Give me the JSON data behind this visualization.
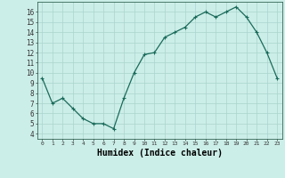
{
  "x": [
    0,
    1,
    2,
    3,
    4,
    5,
    6,
    7,
    8,
    9,
    10,
    11,
    12,
    13,
    14,
    15,
    16,
    17,
    18,
    19,
    20,
    21,
    22,
    23
  ],
  "y": [
    9.5,
    7.0,
    7.5,
    6.5,
    5.5,
    5.0,
    5.0,
    4.5,
    7.5,
    10.0,
    11.8,
    12.0,
    13.5,
    14.0,
    14.5,
    15.5,
    16.0,
    15.5,
    16.0,
    16.5,
    15.5,
    14.0,
    12.0,
    9.5
  ],
  "line_color": "#1a6b5a",
  "marker": "+",
  "marker_size": 3,
  "marker_linewidth": 0.8,
  "line_width": 0.9,
  "xlabel": "Humidex (Indice chaleur)",
  "xlabel_fontsize": 7,
  "background_color": "#cceee8",
  "grid_color": "#aad4ce",
  "xtick_labels": [
    "0",
    "1",
    "2",
    "3",
    "4",
    "5",
    "6",
    "7",
    "8",
    "9",
    "10",
    "11",
    "12",
    "13",
    "14",
    "15",
    "16",
    "17",
    "18",
    "19",
    "20",
    "21",
    "22",
    "23"
  ],
  "ytick_min": 4,
  "ytick_max": 16,
  "ytick_step": 1,
  "xlim": [
    -0.5,
    23.5
  ],
  "ylim": [
    3.5,
    17.0
  ]
}
